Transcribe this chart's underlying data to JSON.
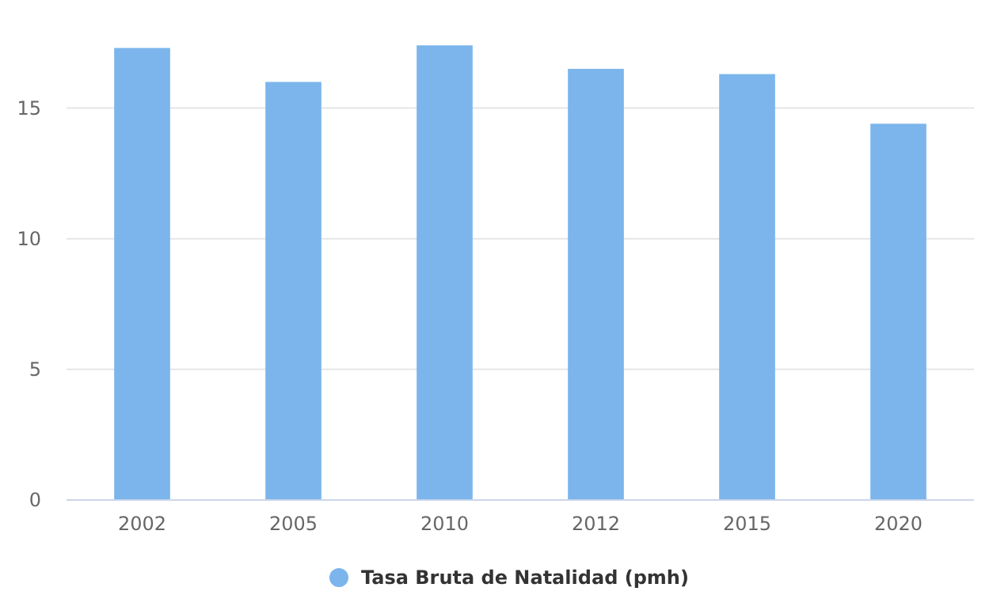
{
  "chart_data": {
    "type": "bar",
    "categories": [
      "2002",
      "2005",
      "2010",
      "2012",
      "2015",
      "2020"
    ],
    "series": [
      {
        "name": "Tasa Bruta de Natalidad (pmh)",
        "color": "#7cb5ec",
        "values": [
          17.3,
          16.0,
          17.4,
          16.5,
          16.3,
          14.4
        ]
      }
    ],
    "ylim": [
      0,
      17.5
    ],
    "yticks": [
      0,
      5,
      10,
      15
    ],
    "grid": "y",
    "legend": "bottom"
  }
}
